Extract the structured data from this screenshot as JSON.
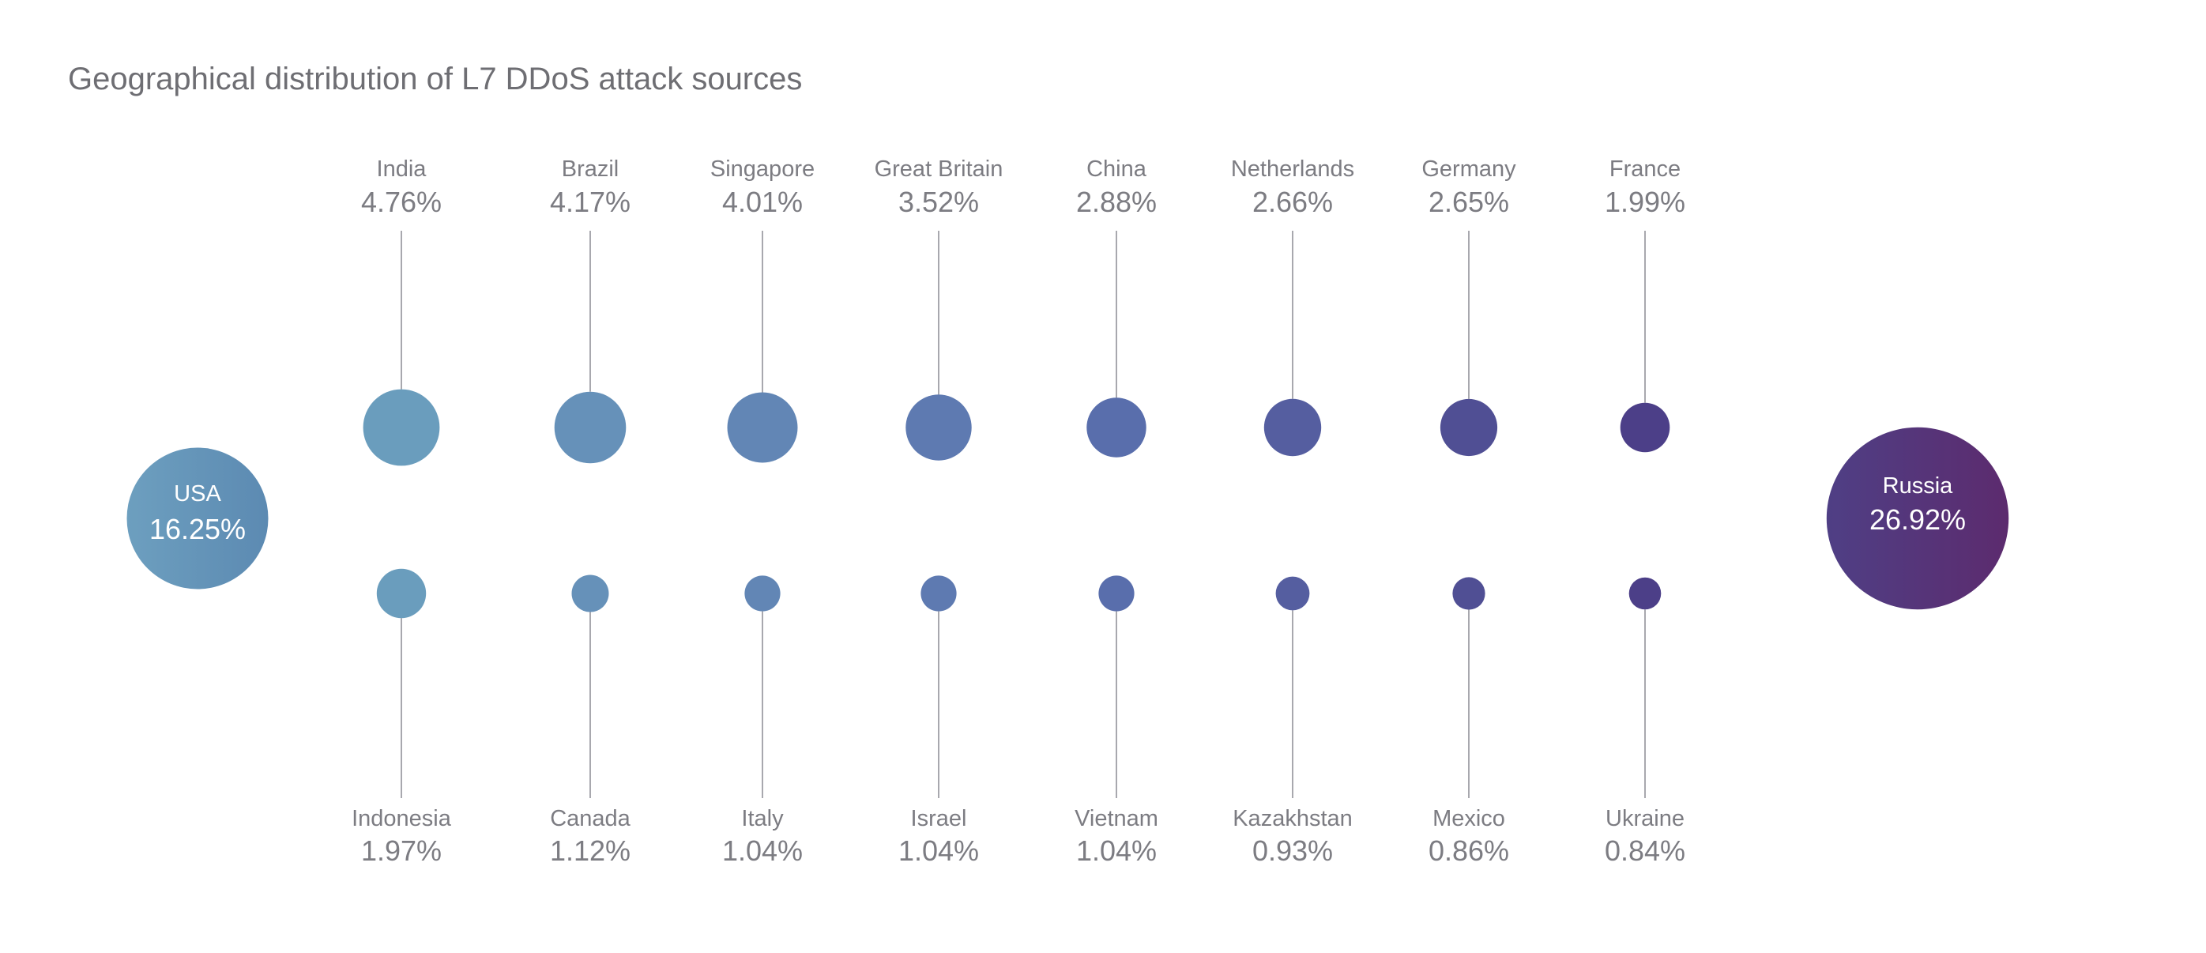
{
  "chart_data": {
    "type": "bubble",
    "title": "Geographical distribution of L7 DDoS attack sources",
    "unit": "%",
    "featured": [
      {
        "name": "USA",
        "label": "16.25%",
        "value": 16.25
      },
      {
        "name": "Russia",
        "label": "26.92%",
        "value": 26.92
      }
    ],
    "top_row": [
      {
        "name": "India",
        "label": "4.76%",
        "value": 4.76
      },
      {
        "name": "Brazil",
        "label": "4.17%",
        "value": 4.17
      },
      {
        "name": "Singapore",
        "label": "4.01%",
        "value": 4.01
      },
      {
        "name": "Great Britain",
        "label": "3.52%",
        "value": 3.52
      },
      {
        "name": "China",
        "label": "2.88%",
        "value": 2.88
      },
      {
        "name": "Netherlands",
        "label": "2.66%",
        "value": 2.66
      },
      {
        "name": "Germany",
        "label": "2.65%",
        "value": 2.65
      },
      {
        "name": "France",
        "label": "1.99%",
        "value": 1.99
      }
    ],
    "bottom_row": [
      {
        "name": "Indonesia",
        "label": "1.97%",
        "value": 1.97
      },
      {
        "name": "Canada",
        "label": "1.12%",
        "value": 1.12
      },
      {
        "name": "Italy",
        "label": "1.04%",
        "value": 1.04
      },
      {
        "name": "Israel",
        "label": "1.04%",
        "value": 1.04
      },
      {
        "name": "Vietnam",
        "label": "1.04%",
        "value": 1.04
      },
      {
        "name": "Kazakhstan",
        "label": "0.93%",
        "value": 0.93
      },
      {
        "name": "Mexico",
        "label": "0.86%",
        "value": 0.86
      },
      {
        "name": "Ukraine",
        "label": "0.84%",
        "value": 0.84
      }
    ],
    "colors": {
      "gradient_start": "#6a9dbd",
      "gradient_mid": "#5a70ae",
      "gradient_end": "#5b2a6c",
      "text": "#7c7c82",
      "leader": "#a8a8ae"
    }
  }
}
